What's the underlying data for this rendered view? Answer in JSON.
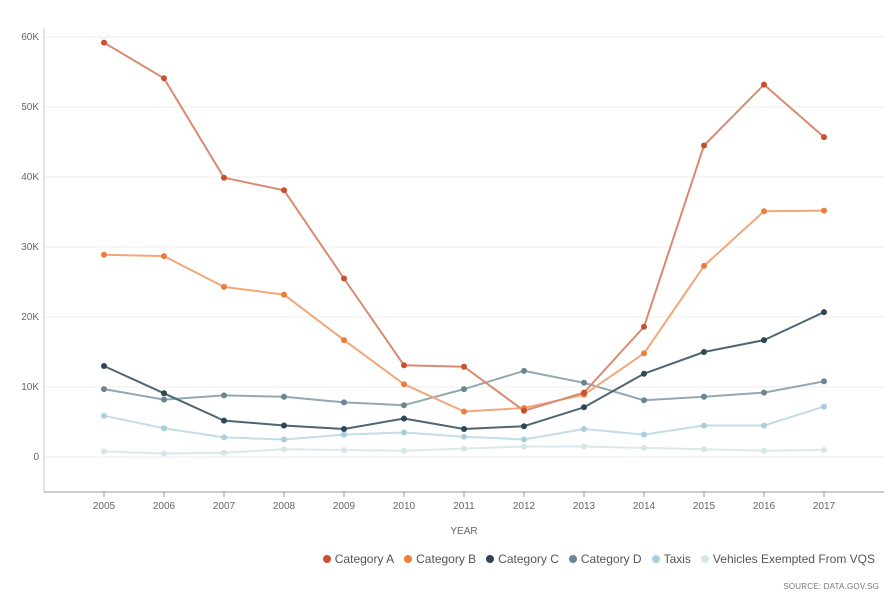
{
  "chart_data": {
    "type": "line",
    "title": "",
    "xlabel": "YEAR",
    "ylabel": "",
    "x": [
      "2005",
      "2006",
      "2007",
      "2008",
      "2009",
      "2010",
      "2011",
      "2012",
      "2013",
      "2014",
      "2015",
      "2016",
      "2017"
    ],
    "y_ticks": [
      {
        "value": 0,
        "label": "0"
      },
      {
        "value": 10000,
        "label": "10K"
      },
      {
        "value": 20000,
        "label": "20K"
      },
      {
        "value": 30000,
        "label": "30K"
      },
      {
        "value": 40000,
        "label": "40K"
      },
      {
        "value": 50000,
        "label": "50K"
      },
      {
        "value": 60000,
        "label": "60K"
      }
    ],
    "ylim": [
      -5000,
      65000
    ],
    "grid": true,
    "legend_position": "bottom-right",
    "series": [
      {
        "name": "Category A",
        "color": "#c9502d",
        "line_color": "#d98b72",
        "values": [
          59200,
          54100,
          39900,
          38100,
          25500,
          13100,
          12900,
          6600,
          9200,
          18600,
          44500,
          53200,
          45700
        ]
      },
      {
        "name": "Category B",
        "color": "#ee7d3c",
        "line_color": "#f2a779",
        "values": [
          28900,
          28700,
          24300,
          23200,
          16700,
          10400,
          6500,
          7000,
          8900,
          14800,
          27300,
          35100,
          35200
        ]
      },
      {
        "name": "Category C",
        "color": "#2e4655",
        "line_color": "#4d6675",
        "values": [
          13000,
          9100,
          5200,
          4500,
          4000,
          5500,
          4000,
          4400,
          7100,
          11900,
          15000,
          16700,
          20700
        ]
      },
      {
        "name": "Category D",
        "color": "#6b8592",
        "line_color": "#93a8b3",
        "values": [
          9700,
          8200,
          8800,
          8600,
          7800,
          7400,
          9700,
          12300,
          10600,
          8100,
          8600,
          9200,
          10800
        ]
      },
      {
        "name": "Taxis",
        "color": "#a9cfdc",
        "line_color": "#c2dde6",
        "values": [
          5900,
          4100,
          2800,
          2500,
          3200,
          3500,
          2900,
          2500,
          4000,
          3200,
          4500,
          4500,
          7200
        ]
      },
      {
        "name": "Vehicles Exempted From VQS",
        "color": "#d7e4ea",
        "line_color": "#dde8ed",
        "values": [
          800,
          500,
          600,
          1100,
          1000,
          900,
          1200,
          1500,
          1500,
          1300,
          1100,
          900,
          1000
        ]
      }
    ]
  },
  "source_text": "SOURCE: DATA.GOV.SG"
}
